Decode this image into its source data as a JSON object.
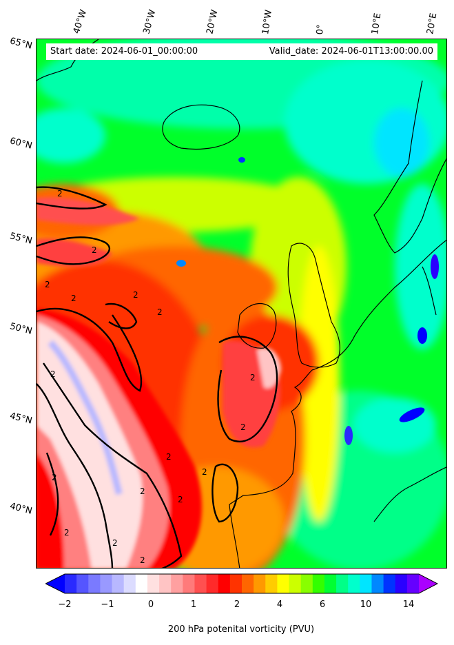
{
  "header": {
    "start_date": "Start date: 2024-06-01_00:00:00",
    "valid_date": "Valid_date: 2024-06-01T13:00:00.00"
  },
  "lon_labels": [
    "40°W",
    "30°W",
    "20°W",
    "10°W",
    "0°",
    "10°E",
    "20°E"
  ],
  "lat_labels": [
    "65°N",
    "60°N",
    "55°N",
    "50°N",
    "45°N",
    "40°N"
  ],
  "contour_label": "2",
  "colorbar": {
    "label": "200 hPa potenital vorticity (PVU)",
    "ticks": [
      "−2",
      "−1",
      "0",
      "1",
      "2",
      "4",
      "6",
      "10",
      "14"
    ],
    "colors": [
      "#0000ff",
      "#2a2aff",
      "#5555ff",
      "#7a7aff",
      "#9999ff",
      "#b8b8ff",
      "#dcdcff",
      "#ffffff",
      "#ffe0e0",
      "#ffc4c4",
      "#ffa0a0",
      "#ff7a7a",
      "#ff5050",
      "#ff2a2a",
      "#ff0000",
      "#ff3300",
      "#ff6600",
      "#ff9900",
      "#ffcc00",
      "#ffff00",
      "#ccff00",
      "#88ff00",
      "#33ff00",
      "#00ff33",
      "#00ff88",
      "#00ffcc",
      "#00e5ff",
      "#0088ff",
      "#0033ff",
      "#2a00ff",
      "#6600ff",
      "#aa00ff"
    ]
  },
  "colors": {
    "background_field": "#00ff2a",
    "coastline": "#000000",
    "contour": "#000000"
  }
}
